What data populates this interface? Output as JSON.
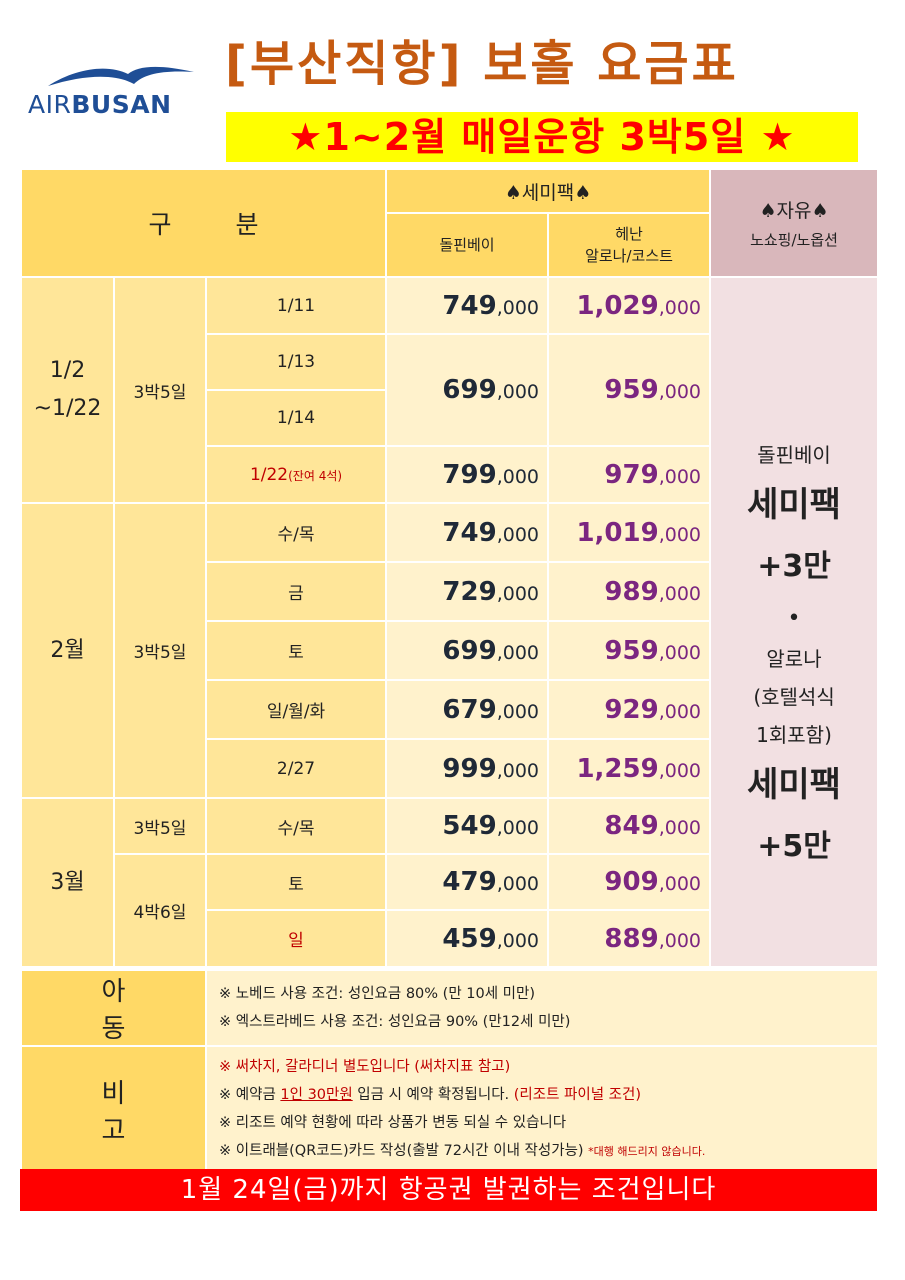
{
  "logo": {
    "air": "AIR",
    "busan": "BUSAN",
    "icon": "seagull-icon",
    "color": "#1f4e96"
  },
  "title": "[부산직항] 보홀 요금표",
  "subtitle": "★1~2월 매일운항 3박5일 ★",
  "header": {
    "gubun": "구 분",
    "semipack": "♠세미팩♠",
    "dolphin": "돌핀베이",
    "henan_1": "헤난",
    "henan_2": "알로나/코스트",
    "free": "♠자유♠",
    "free_sub": "노쇼핑/노옵션"
  },
  "groups": [
    {
      "period_1": "1/2",
      "period_2": "~1/22",
      "rows": [
        {
          "nights": "3박5일",
          "days": [
            "1/11"
          ],
          "dolphin": "749",
          "henan": "1,029"
        },
        {
          "days": [
            "1/13",
            "1/14"
          ],
          "dolphin": "699",
          "henan": "959"
        },
        {
          "days": [
            "1/22"
          ],
          "note": "(잔여 4석)",
          "dolphin": "799",
          "henan": "979"
        }
      ]
    },
    {
      "period_1": "2월",
      "rows": [
        {
          "nights": "3박5일",
          "days": [
            "수/목"
          ],
          "dolphin": "749",
          "henan": "1,019"
        },
        {
          "days": [
            "금"
          ],
          "dolphin": "729",
          "henan": "989"
        },
        {
          "days": [
            "토"
          ],
          "dolphin": "699",
          "henan": "959"
        },
        {
          "days": [
            "일/월/화"
          ],
          "dolphin": "679",
          "henan": "929"
        },
        {
          "days": [
            "2/27"
          ],
          "dolphin": "999",
          "henan": "1,259"
        }
      ]
    },
    {
      "period_1": "3월",
      "rows": [
        {
          "nights": "3박5일",
          "days": [
            "수/목"
          ],
          "dolphin": "549",
          "henan": "849"
        },
        {
          "nights": "4박6일",
          "days": [
            "토"
          ],
          "dolphin": "479",
          "henan": "909"
        },
        {
          "days": [
            "일"
          ],
          "dolphin": "459",
          "henan": "889"
        }
      ]
    }
  ],
  "price_unit": ",000",
  "free_col": {
    "line1": "돌핀베이",
    "line2": "세미팩",
    "line3": "+3만",
    "line4": "•",
    "line5": "알로나",
    "line6": "(호텔석식",
    "line7": "1회포함)",
    "line8": "세미팩",
    "line9": "+5만"
  },
  "child": {
    "label": "아 동",
    "note1": "※ 노베드 사용 조건: 성인요금 80% (만 10세 미만)",
    "note2": "※ 엑스트라베드 사용 조건: 성인요금 90% (만12세 미만)"
  },
  "remarks": {
    "label": "비 고",
    "note1": "※ 써차지, 갈라디너 별도입니다 (써차지표 참고)",
    "note2_a": "※ 예약금 ",
    "note2_u": "1인 30만원",
    "note2_b": " 입금 시 예약 확정됩니다. ",
    "note2_c": "(리조트 파이널 조건)",
    "note3": "※ 리조트 예약 현황에 따라 상품가 변동 되실 수 있습니다",
    "note4": "※ 이트래블(QR코드)카드 작성(출발 72시간 이내 작성가능) ",
    "note4_small": "*대행 해드리지 않습니다."
  },
  "footer": "1월 24일(금)까지 항공권 발권하는 조건입니다",
  "colors": {
    "header": "#ffd966",
    "cell_yellow": "#ffe699",
    "cell_light": "#fff2cc",
    "free_header": "#d9b7bb",
    "free_cell": "#f2e0e2",
    "title": "#c55a11",
    "footer_bg": "#ff0000"
  }
}
